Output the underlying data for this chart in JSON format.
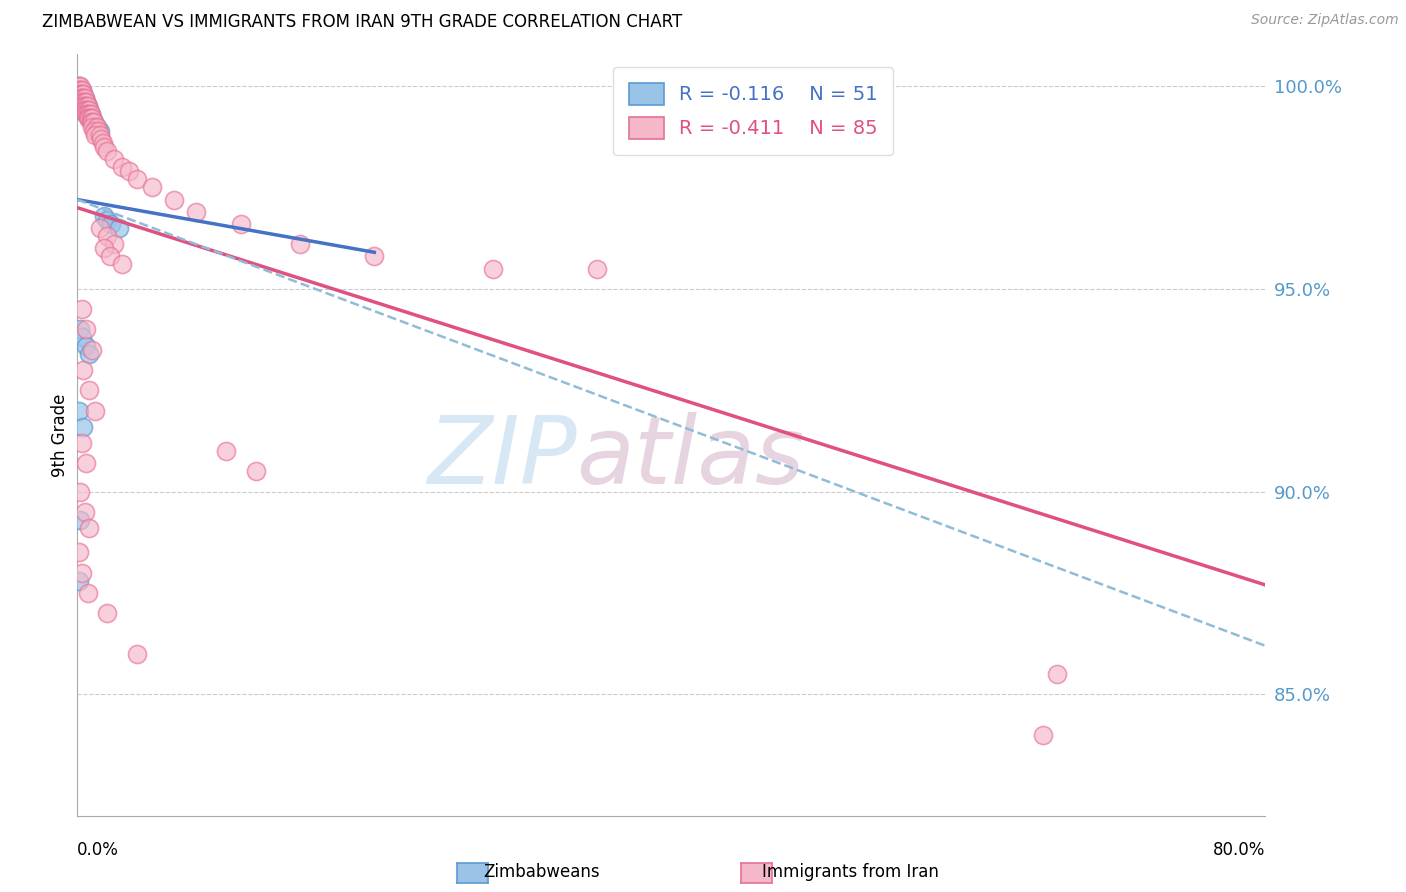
{
  "title": "ZIMBABWEAN VS IMMIGRANTS FROM IRAN 9TH GRADE CORRELATION CHART",
  "source": "Source: ZipAtlas.com",
  "ylabel": "9th Grade",
  "ytick_labels": [
    "100.0%",
    "95.0%",
    "90.0%",
    "85.0%"
  ],
  "ytick_values": [
    1.0,
    0.95,
    0.9,
    0.85
  ],
  "xmin": 0.0,
  "xmax": 0.8,
  "ymin": 0.82,
  "ymax": 1.008,
  "legend_blue_label": "Zimbabweans",
  "legend_pink_label": "Immigrants from Iran",
  "legend_R_blue": "-0.116",
  "legend_N_blue": "51",
  "legend_R_pink": "-0.411",
  "legend_N_pink": "85",
  "watermark_zip": "ZIP",
  "watermark_atlas": "atlas",
  "blue_scatter": [
    [
      0.001,
      1.0
    ],
    [
      0.001,
      0.999
    ],
    [
      0.001,
      0.998
    ],
    [
      0.002,
      0.999
    ],
    [
      0.002,
      0.998
    ],
    [
      0.002,
      0.997
    ],
    [
      0.002,
      0.996
    ],
    [
      0.003,
      0.999
    ],
    [
      0.003,
      0.998
    ],
    [
      0.003,
      0.997
    ],
    [
      0.003,
      0.996
    ],
    [
      0.003,
      0.995
    ],
    [
      0.004,
      0.998
    ],
    [
      0.004,
      0.997
    ],
    [
      0.004,
      0.996
    ],
    [
      0.004,
      0.995
    ],
    [
      0.004,
      0.994
    ],
    [
      0.005,
      0.997
    ],
    [
      0.005,
      0.996
    ],
    [
      0.005,
      0.995
    ],
    [
      0.005,
      0.994
    ],
    [
      0.006,
      0.996
    ],
    [
      0.006,
      0.995
    ],
    [
      0.006,
      0.994
    ],
    [
      0.006,
      0.993
    ],
    [
      0.007,
      0.995
    ],
    [
      0.007,
      0.994
    ],
    [
      0.007,
      0.993
    ],
    [
      0.008,
      0.994
    ],
    [
      0.008,
      0.993
    ],
    [
      0.008,
      0.992
    ],
    [
      0.009,
      0.993
    ],
    [
      0.009,
      0.992
    ],
    [
      0.01,
      0.992
    ],
    [
      0.01,
      0.991
    ],
    [
      0.011,
      0.991
    ],
    [
      0.012,
      0.99
    ],
    [
      0.013,
      0.99
    ],
    [
      0.015,
      0.989
    ],
    [
      0.018,
      0.968
    ],
    [
      0.02,
      0.967
    ],
    [
      0.023,
      0.966
    ],
    [
      0.028,
      0.965
    ],
    [
      0.002,
      0.94
    ],
    [
      0.003,
      0.938
    ],
    [
      0.006,
      0.936
    ],
    [
      0.008,
      0.934
    ],
    [
      0.001,
      0.92
    ],
    [
      0.004,
      0.916
    ],
    [
      0.002,
      0.893
    ],
    [
      0.001,
      0.878
    ]
  ],
  "pink_scatter": [
    [
      0.001,
      1.0
    ],
    [
      0.002,
      1.0
    ],
    [
      0.001,
      0.999
    ],
    [
      0.002,
      0.999
    ],
    [
      0.003,
      0.999
    ],
    [
      0.001,
      0.998
    ],
    [
      0.002,
      0.998
    ],
    [
      0.003,
      0.998
    ],
    [
      0.004,
      0.998
    ],
    [
      0.002,
      0.997
    ],
    [
      0.003,
      0.997
    ],
    [
      0.004,
      0.997
    ],
    [
      0.005,
      0.997
    ],
    [
      0.003,
      0.996
    ],
    [
      0.004,
      0.996
    ],
    [
      0.005,
      0.996
    ],
    [
      0.006,
      0.996
    ],
    [
      0.004,
      0.995
    ],
    [
      0.005,
      0.995
    ],
    [
      0.006,
      0.995
    ],
    [
      0.007,
      0.995
    ],
    [
      0.005,
      0.994
    ],
    [
      0.006,
      0.994
    ],
    [
      0.007,
      0.994
    ],
    [
      0.008,
      0.994
    ],
    [
      0.006,
      0.993
    ],
    [
      0.007,
      0.993
    ],
    [
      0.008,
      0.993
    ],
    [
      0.009,
      0.993
    ],
    [
      0.007,
      0.992
    ],
    [
      0.008,
      0.992
    ],
    [
      0.009,
      0.992
    ],
    [
      0.01,
      0.992
    ],
    [
      0.009,
      0.991
    ],
    [
      0.01,
      0.991
    ],
    [
      0.011,
      0.991
    ],
    [
      0.012,
      0.99
    ],
    [
      0.01,
      0.99
    ],
    [
      0.013,
      0.99
    ],
    [
      0.011,
      0.989
    ],
    [
      0.014,
      0.989
    ],
    [
      0.012,
      0.988
    ],
    [
      0.015,
      0.988
    ],
    [
      0.016,
      0.987
    ],
    [
      0.017,
      0.986
    ],
    [
      0.018,
      0.985
    ],
    [
      0.02,
      0.984
    ],
    [
      0.025,
      0.982
    ],
    [
      0.03,
      0.98
    ],
    [
      0.035,
      0.979
    ],
    [
      0.04,
      0.977
    ],
    [
      0.05,
      0.975
    ],
    [
      0.065,
      0.972
    ],
    [
      0.08,
      0.969
    ],
    [
      0.11,
      0.966
    ],
    [
      0.15,
      0.961
    ],
    [
      0.2,
      0.958
    ],
    [
      0.28,
      0.955
    ],
    [
      0.35,
      0.955
    ],
    [
      0.015,
      0.965
    ],
    [
      0.02,
      0.963
    ],
    [
      0.025,
      0.961
    ],
    [
      0.018,
      0.96
    ],
    [
      0.022,
      0.958
    ],
    [
      0.03,
      0.956
    ],
    [
      0.003,
      0.945
    ],
    [
      0.006,
      0.94
    ],
    [
      0.01,
      0.935
    ],
    [
      0.004,
      0.93
    ],
    [
      0.008,
      0.925
    ],
    [
      0.012,
      0.92
    ],
    [
      0.003,
      0.912
    ],
    [
      0.006,
      0.907
    ],
    [
      0.002,
      0.9
    ],
    [
      0.005,
      0.895
    ],
    [
      0.008,
      0.891
    ],
    [
      0.001,
      0.885
    ],
    [
      0.003,
      0.88
    ],
    [
      0.007,
      0.875
    ],
    [
      0.02,
      0.87
    ],
    [
      0.04,
      0.86
    ],
    [
      0.1,
      0.91
    ],
    [
      0.12,
      0.905
    ],
    [
      0.65,
      0.84
    ],
    [
      0.66,
      0.855
    ]
  ],
  "blue_line": [
    [
      0.0,
      0.972
    ],
    [
      0.2,
      0.959
    ]
  ],
  "pink_line": [
    [
      0.0,
      0.97
    ],
    [
      0.8,
      0.877
    ]
  ],
  "dashed_line": [
    [
      0.0,
      0.972
    ],
    [
      0.8,
      0.862
    ]
  ],
  "blue_color": "#99c4e8",
  "blue_edge_color": "#5b9bd5",
  "pink_color": "#f5b8c8",
  "pink_edge_color": "#e87096",
  "blue_line_color": "#4472c4",
  "pink_line_color": "#e05080",
  "dashed_line_color": "#90bcd8",
  "grid_color": "#cccccc",
  "right_axis_color": "#5599cc",
  "background_color": "#ffffff"
}
